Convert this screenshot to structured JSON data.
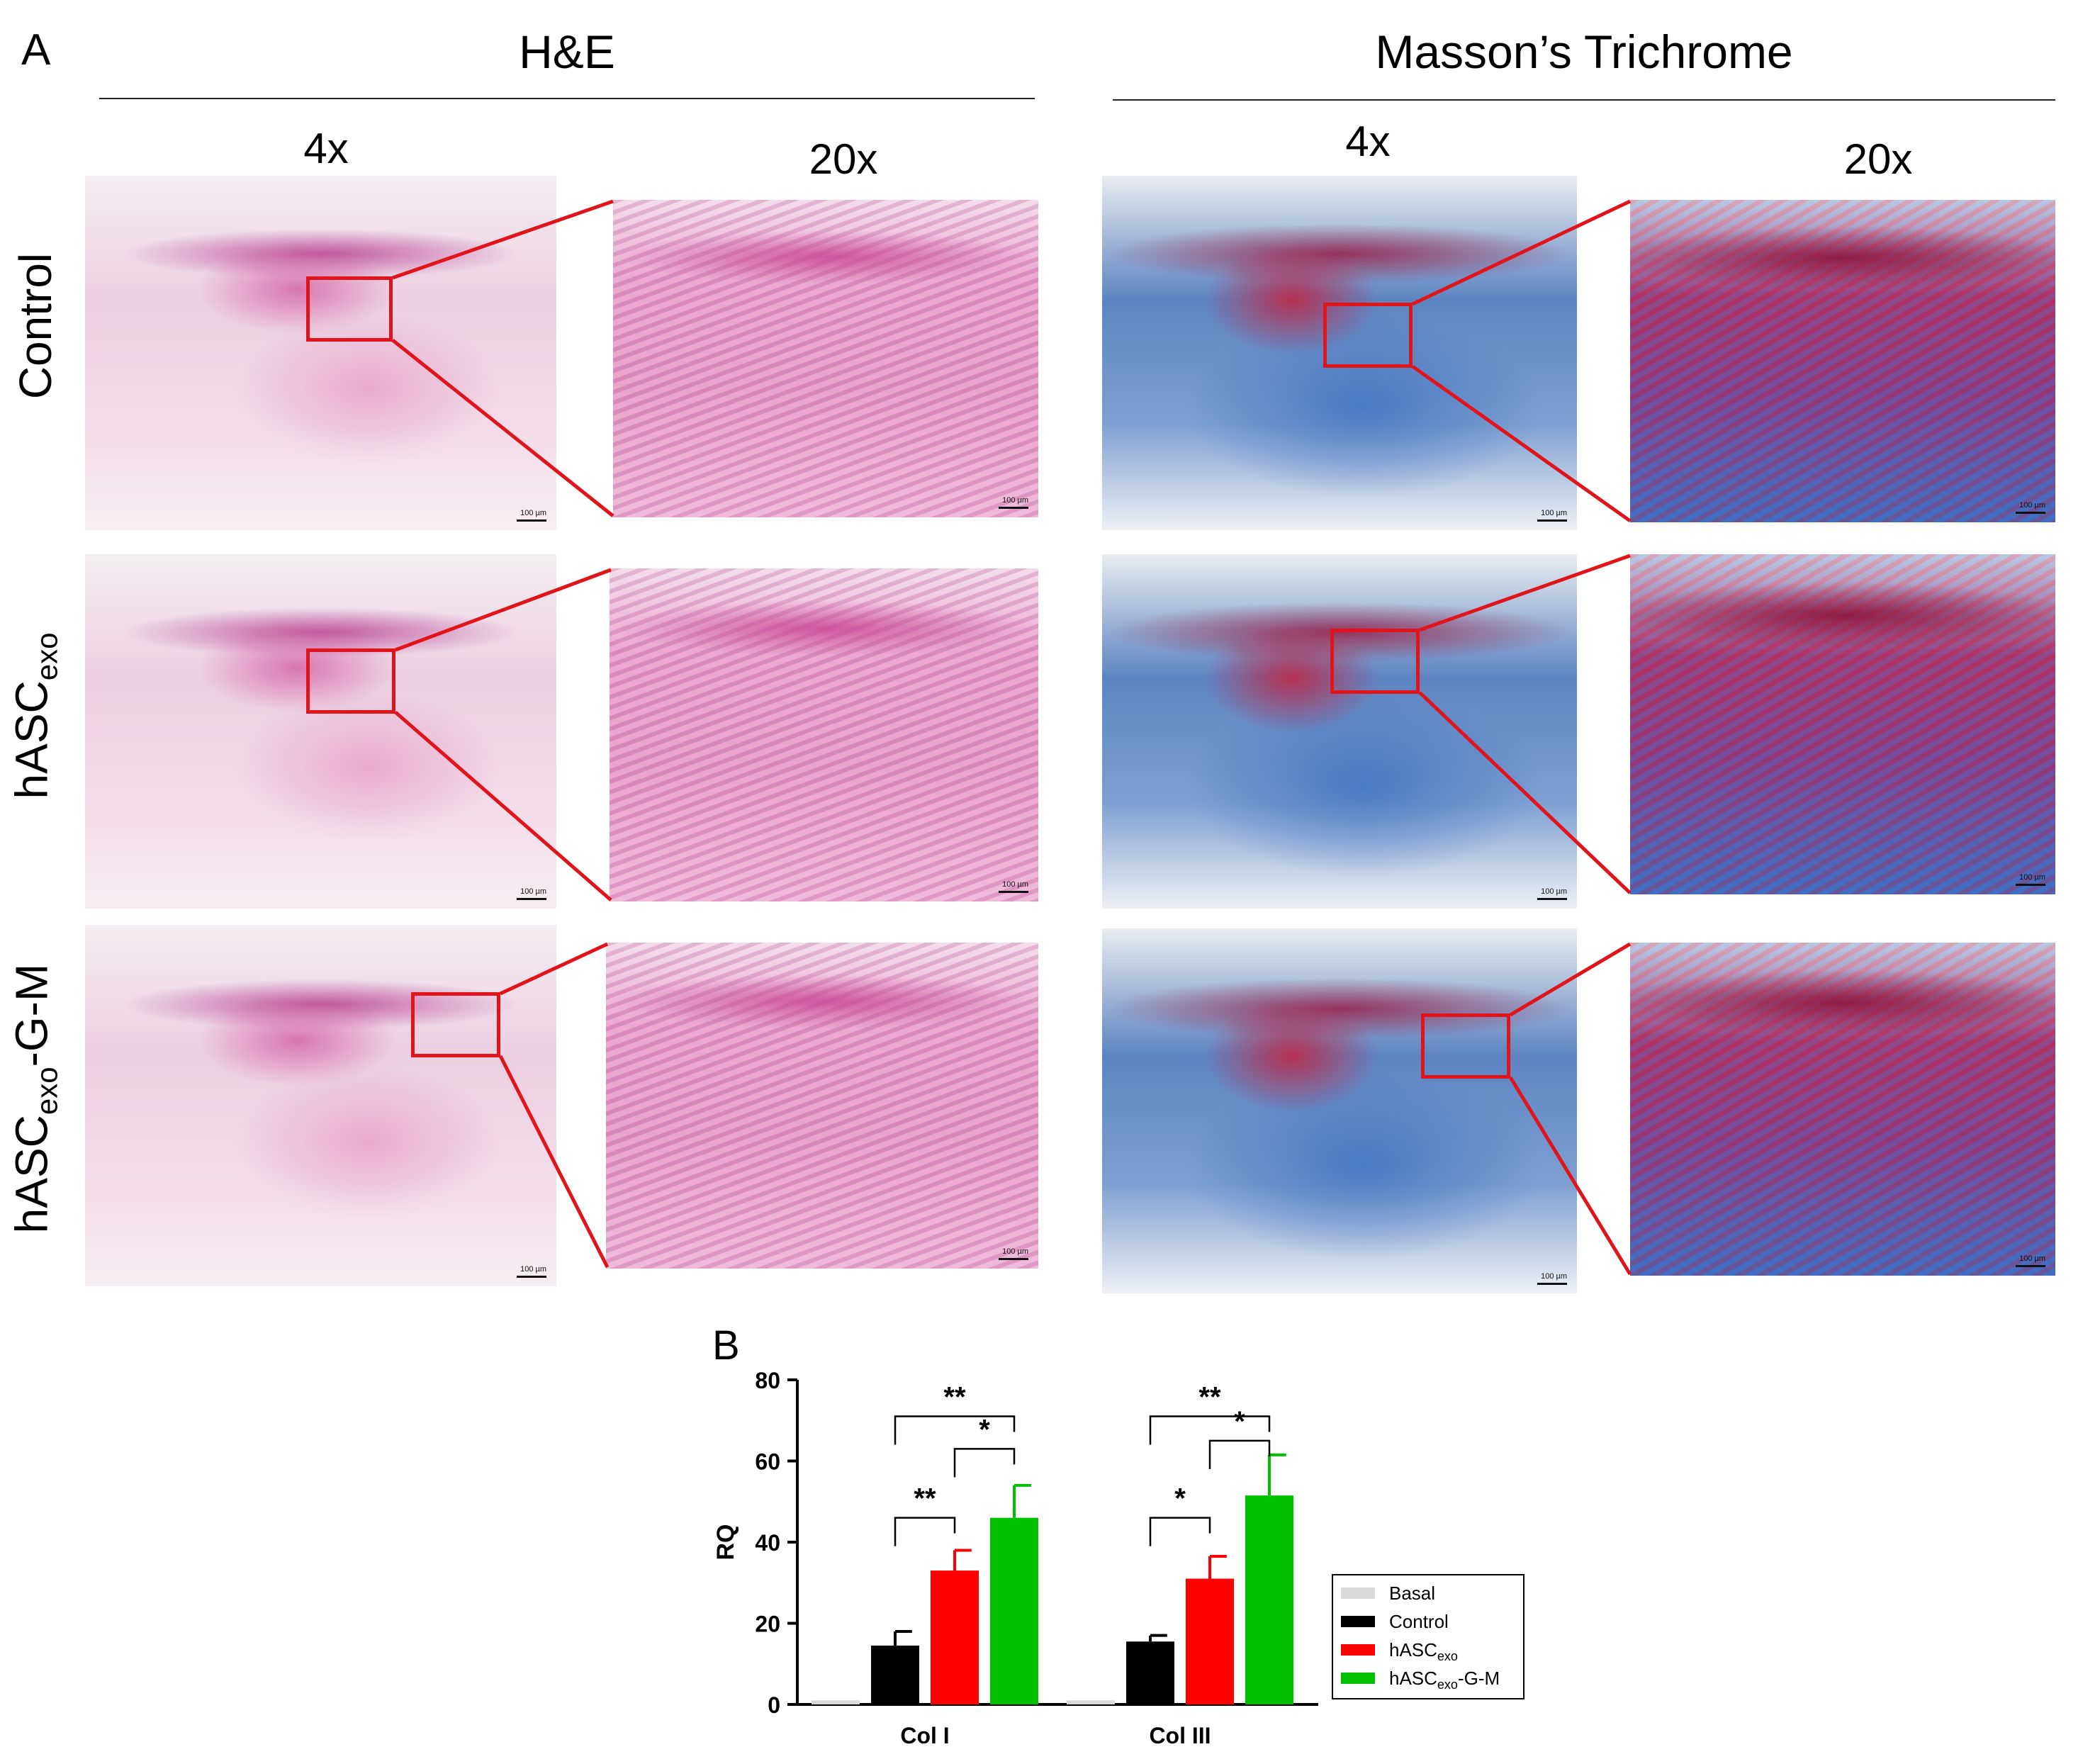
{
  "panel_a": {
    "letter": "A",
    "sections": [
      {
        "title": "H&E"
      },
      {
        "title": "Masson’s Trichrome"
      }
    ],
    "magnifications": [
      "4x",
      "20x",
      "4x",
      "20x"
    ],
    "rows": [
      {
        "label": "Control"
      },
      {
        "label_main": "hASC",
        "label_sub": "exo",
        "label_suffix": ""
      },
      {
        "label_main": "hASC",
        "label_sub": "exo",
        "label_suffix": "-G-M"
      }
    ],
    "scale_label": "100 µm",
    "zoom_color": "#e0141b"
  },
  "panel_b": {
    "letter": "B"
  },
  "chart_data": {
    "type": "bar",
    "categories": [
      "Col I",
      "Col III"
    ],
    "ylabel": "RQ",
    "ylim": [
      0,
      80
    ],
    "yticks": [
      0,
      20,
      40,
      60,
      80
    ],
    "series": [
      {
        "name": "Basal",
        "color": "#d9d9d9",
        "values": [
          1,
          1
        ],
        "errors": [
          0,
          0
        ]
      },
      {
        "name": "Control",
        "color": "#000000",
        "values": [
          14.5,
          15.5
        ],
        "errors": [
          3.5,
          1.5
        ]
      },
      {
        "name": "hASCexo",
        "name_main": "hASC",
        "name_sub": "exo",
        "name_suffix": "",
        "color": "#ff0000",
        "values": [
          33,
          31
        ],
        "errors": [
          5,
          5.5
        ]
      },
      {
        "name": "hASCexo-G-M",
        "name_main": "hASC",
        "name_sub": "exo",
        "name_suffix": "-G-M",
        "color": "#00c000",
        "values": [
          46,
          51.5
        ],
        "errors": [
          8,
          10
        ]
      }
    ],
    "significance": [
      {
        "category": 0,
        "from": 1,
        "to": 3,
        "label": "**",
        "y": 71
      },
      {
        "category": 0,
        "from": 2,
        "to": 3,
        "label": "*",
        "y": 63
      },
      {
        "category": 0,
        "from": 1,
        "to": 2,
        "label": "**",
        "y": 46
      },
      {
        "category": 1,
        "from": 1,
        "to": 3,
        "label": "**",
        "y": 71
      },
      {
        "category": 1,
        "from": 2,
        "to": 3,
        "label": "*",
        "y": 65
      },
      {
        "category": 1,
        "from": 1,
        "to": 2,
        "label": "*",
        "y": 46
      }
    ],
    "legend_position": "right"
  }
}
